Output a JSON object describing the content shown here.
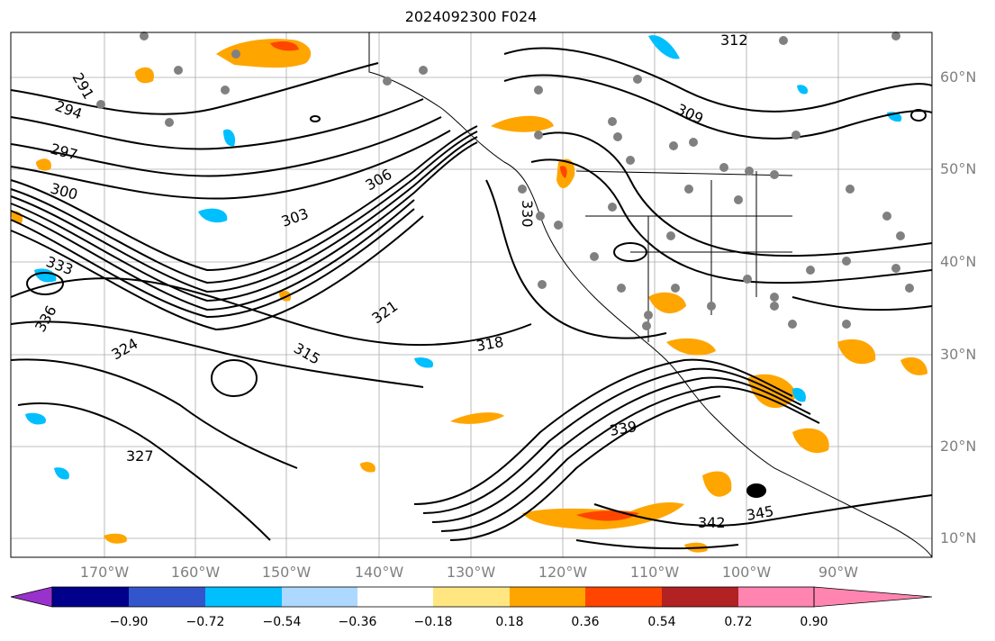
{
  "title": "2024092300 F024",
  "lat_labels": [
    "60°N",
    "50°N",
    "40°N",
    "30°N",
    "20°N",
    "10°N"
  ],
  "lon_labels": [
    "170°W",
    "160°W",
    "150°W",
    "140°W",
    "130°W",
    "120°W",
    "110°W",
    "100°W",
    "90°W"
  ],
  "colorbar": {
    "labels": [
      "−0.90",
      "−0.72",
      "−0.54",
      "−0.36",
      "−0.18",
      "0.18",
      "0.36",
      "0.54",
      "0.72",
      "0.90"
    ],
    "colors": [
      "#9932cc",
      "#00008b",
      "#3355cc",
      "#00bfff",
      "#add8ff",
      "#ffffff",
      "#ffe680",
      "#ffa500",
      "#ff4500",
      "#b22222",
      "#ff85b0"
    ]
  },
  "contour_labels": [
    "291",
    "294",
    "297",
    "300",
    "303",
    "306",
    "309",
    "312",
    "315",
    "318",
    "321",
    "324",
    "327",
    "330",
    "333",
    "336",
    "339",
    "342",
    "345"
  ],
  "colors": {
    "contour": "#000000",
    "grid": "#aaaaaa",
    "station": "#808080",
    "axis_text": "#808080"
  }
}
